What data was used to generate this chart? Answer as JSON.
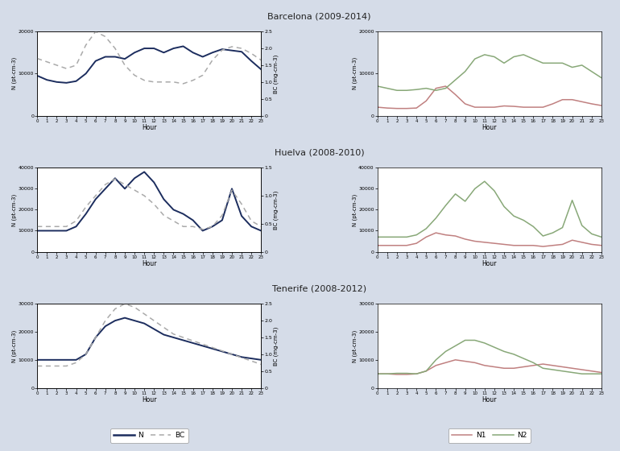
{
  "titles": [
    "Barcelona (2009-2014)",
    "Huelva (2008-2010)",
    "Tenerife (2008-2012)"
  ],
  "background_color": "#d5dce8",
  "hours": [
    0,
    1,
    2,
    3,
    4,
    5,
    6,
    7,
    8,
    9,
    10,
    11,
    12,
    13,
    14,
    15,
    16,
    17,
    18,
    19,
    20,
    21,
    22,
    23
  ],
  "barcelona": {
    "N": [
      9500,
      8500,
      8000,
      7800,
      8200,
      10000,
      13000,
      14000,
      14000,
      13500,
      15000,
      16000,
      16000,
      15000,
      16000,
      16500,
      15000,
      14000,
      15000,
      15800,
      15500,
      15200,
      13000,
      11000
    ],
    "BC": [
      1.7,
      1.6,
      1.5,
      1.4,
      1.5,
      2.1,
      2.5,
      2.35,
      2.0,
      1.5,
      1.2,
      1.05,
      1.0,
      1.0,
      1.0,
      0.95,
      1.05,
      1.2,
      1.65,
      1.95,
      2.05,
      2.0,
      1.85,
      1.65
    ],
    "N1": [
      2000,
      1800,
      1700,
      1700,
      1800,
      3500,
      6500,
      7000,
      5000,
      2800,
      2000,
      2000,
      2000,
      2300,
      2200,
      2000,
      2000,
      2000,
      2800,
      3800,
      3800,
      3300,
      2800,
      2400
    ],
    "N2": [
      7000,
      6500,
      6000,
      6000,
      6200,
      6500,
      6000,
      6500,
      8500,
      10500,
      13500,
      14500,
      14000,
      12500,
      14000,
      14500,
      13500,
      12500,
      12500,
      12500,
      11500,
      12000,
      10500,
      9000
    ]
  },
  "huelva": {
    "N": [
      10000,
      10000,
      10000,
      10000,
      12000,
      18000,
      25000,
      30000,
      35000,
      30000,
      35000,
      38000,
      33000,
      25000,
      20000,
      18000,
      15000,
      10000,
      12000,
      15000,
      30000,
      17000,
      12000,
      10000
    ],
    "BC": [
      0.45,
      0.45,
      0.45,
      0.45,
      0.55,
      0.8,
      1.0,
      1.2,
      1.3,
      1.2,
      1.1,
      1.0,
      0.85,
      0.65,
      0.55,
      0.45,
      0.45,
      0.4,
      0.45,
      0.65,
      1.1,
      0.85,
      0.55,
      0.45
    ],
    "N1": [
      3000,
      3000,
      3000,
      3000,
      4000,
      7000,
      9000,
      8000,
      7500,
      6000,
      5000,
      4500,
      4000,
      3500,
      3000,
      3000,
      3000,
      2500,
      3000,
      3500,
      5500,
      4500,
      3500,
      3000
    ],
    "N2": [
      7000,
      7000,
      7000,
      7000,
      8000,
      11000,
      16000,
      22000,
      27500,
      24000,
      30000,
      33500,
      29000,
      21500,
      17000,
      15000,
      12000,
      7500,
      9000,
      11500,
      24500,
      12500,
      8500,
      7000
    ]
  },
  "tenerife": {
    "N": [
      10000,
      10000,
      10000,
      10000,
      10000,
      12000,
      18000,
      22000,
      24000,
      25000,
      24000,
      23000,
      21000,
      19000,
      18000,
      17000,
      16000,
      15000,
      14000,
      13000,
      12000,
      11000,
      10500,
      10000
    ],
    "BC": [
      0.65,
      0.65,
      0.65,
      0.65,
      0.75,
      1.0,
      1.5,
      2.0,
      2.35,
      2.5,
      2.4,
      2.2,
      2.0,
      1.8,
      1.6,
      1.5,
      1.4,
      1.3,
      1.2,
      1.1,
      1.0,
      0.9,
      0.8,
      0.7
    ],
    "N1": [
      5000,
      5000,
      4800,
      4800,
      5000,
      6000,
      8000,
      9000,
      10000,
      9500,
      9000,
      8000,
      7500,
      7000,
      7000,
      7500,
      8000,
      8500,
      8000,
      7500,
      7000,
      6500,
      6000,
      5500
    ],
    "N2": [
      5000,
      5000,
      5200,
      5200,
      5000,
      6000,
      10000,
      13000,
      15000,
      17000,
      17000,
      16000,
      14500,
      13000,
      12000,
      10500,
      9000,
      7000,
      6500,
      6000,
      5500,
      5000,
      5000,
      5000
    ]
  },
  "ylim_N_barcelona": [
    0,
    20000
  ],
  "ylim_BC_barcelona": [
    0,
    2.5
  ],
  "ylim_N2_barcelona": [
    0,
    20000
  ],
  "ylim_N_huelva": [
    0,
    40000
  ],
  "ylim_BC_huelva": [
    0,
    1.5
  ],
  "ylim_N2_huelva": [
    0,
    40000
  ],
  "ylim_N_tenerife": [
    0,
    30000
  ],
  "ylim_BC_tenerife": [
    0,
    2.5
  ],
  "ylim_N2_tenerife": [
    0,
    30000
  ],
  "yticks_N_barcelona": [
    0,
    10000,
    20000
  ],
  "yticks_BC_barcelona": [
    0,
    0.5,
    1.0,
    1.5,
    2.0,
    2.5
  ],
  "yticks_N2_barcelona": [
    0,
    10000,
    20000
  ],
  "yticks_N_huelva": [
    0,
    10000,
    20000,
    30000,
    40000
  ],
  "yticks_BC_huelva": [
    0,
    0.5,
    1.0,
    1.5
  ],
  "yticks_N2_huelva": [
    0,
    10000,
    20000,
    30000,
    40000
  ],
  "yticks_N_tenerife": [
    0,
    10000,
    20000,
    30000
  ],
  "yticks_BC_tenerife": [
    0,
    0.5,
    1.0,
    1.5,
    2.0,
    2.5
  ],
  "yticks_N2_tenerife": [
    0,
    10000,
    20000,
    30000
  ],
  "color_N": "#1c2d5e",
  "color_BC": "#aaaaaa",
  "color_N1": "#c08080",
  "color_N2": "#88a878",
  "ylabel_N": "N (pt-cm-3)",
  "ylabel_BC": "BC (mg-cm-3)",
  "xlabel": "Hour"
}
